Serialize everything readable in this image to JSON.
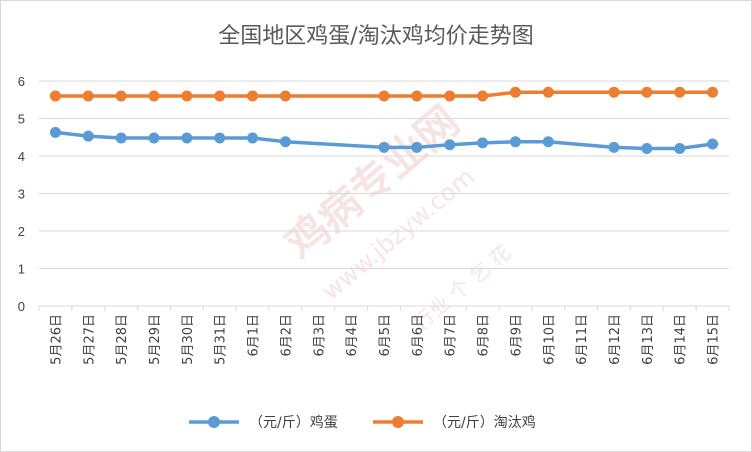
{
  "chart_data": {
    "type": "line",
    "title": "全国地区鸡蛋/淘汰鸡均价走势图",
    "categories": [
      "5月26日",
      "5月27日",
      "5月28日",
      "5月29日",
      "5月30日",
      "5月31日",
      "6月1日",
      "6月2日",
      "6月3日",
      "6月4日",
      "6月5日",
      "6月6日",
      "6月7日",
      "6月8日",
      "6月9日",
      "6月10日",
      "6月11日",
      "6月12日",
      "6月13日",
      "6月14日",
      "6月15日"
    ],
    "ylim": [
      0,
      6
    ],
    "yticks": [
      0,
      1,
      2,
      3,
      4,
      5,
      6
    ],
    "series": [
      {
        "name": "（元/斤）鸡蛋",
        "color": "#5b9bd5",
        "values": [
          4.63,
          4.53,
          4.48,
          4.48,
          4.48,
          4.48,
          4.48,
          4.38,
          null,
          null,
          4.23,
          4.23,
          4.3,
          4.35,
          4.38,
          4.38,
          null,
          4.23,
          4.2,
          4.2,
          4.32
        ]
      },
      {
        "name": "（元/斤）淘汰鸡",
        "color": "#ed7d31",
        "values": [
          5.6,
          5.6,
          5.6,
          5.6,
          5.6,
          5.6,
          5.6,
          5.6,
          null,
          null,
          5.6,
          5.6,
          5.6,
          5.6,
          5.7,
          5.7,
          null,
          5.7,
          5.7,
          5.7,
          5.7
        ]
      }
    ],
    "legend": "bottom",
    "grid": true
  },
  "watermark": {
    "main": "鸡病专业网",
    "url": "www.jbzyw.com",
    "sub": "行业 个 乞 花"
  }
}
